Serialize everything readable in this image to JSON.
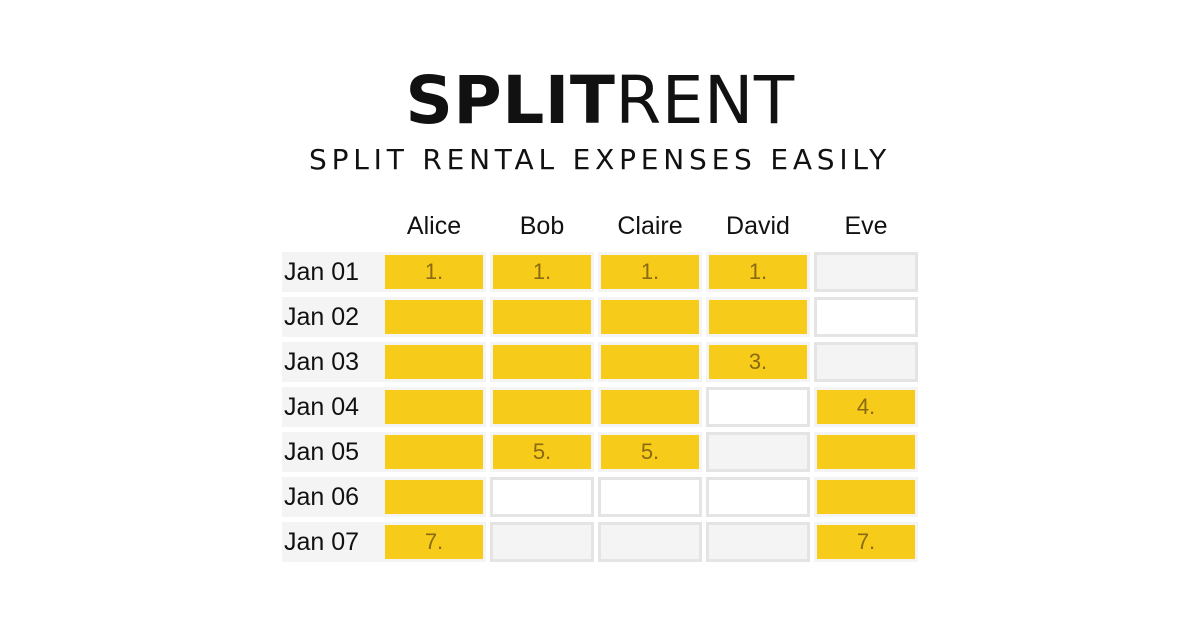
{
  "header": {
    "title_bold": "SPLIT",
    "title_light": "RENT",
    "subtitle": "SPLIT RENTAL EXPENSES EASILY"
  },
  "schedule": {
    "columns": [
      "Alice",
      "Bob",
      "Claire",
      "David",
      "Eve"
    ],
    "rows": [
      {
        "label": "Jan 01",
        "cells": [
          {
            "state": "yellow",
            "text": "1."
          },
          {
            "state": "yellow",
            "text": "1."
          },
          {
            "state": "yellow",
            "text": "1."
          },
          {
            "state": "yellow",
            "text": "1."
          },
          {
            "state": "gray",
            "text": ""
          }
        ]
      },
      {
        "label": "Jan 02",
        "cells": [
          {
            "state": "yellow",
            "text": ""
          },
          {
            "state": "yellow",
            "text": ""
          },
          {
            "state": "yellow",
            "text": ""
          },
          {
            "state": "yellow",
            "text": ""
          },
          {
            "state": "white",
            "text": ""
          }
        ]
      },
      {
        "label": "Jan 03",
        "cells": [
          {
            "state": "yellow",
            "text": ""
          },
          {
            "state": "yellow",
            "text": ""
          },
          {
            "state": "yellow",
            "text": ""
          },
          {
            "state": "yellow",
            "text": "3."
          },
          {
            "state": "gray",
            "text": ""
          }
        ]
      },
      {
        "label": "Jan 04",
        "cells": [
          {
            "state": "yellow",
            "text": ""
          },
          {
            "state": "yellow",
            "text": ""
          },
          {
            "state": "yellow",
            "text": ""
          },
          {
            "state": "white",
            "text": ""
          },
          {
            "state": "yellow",
            "text": "4."
          }
        ]
      },
      {
        "label": "Jan 05",
        "cells": [
          {
            "state": "yellow",
            "text": ""
          },
          {
            "state": "yellow",
            "text": "5."
          },
          {
            "state": "yellow",
            "text": "5."
          },
          {
            "state": "gray",
            "text": ""
          },
          {
            "state": "yellow",
            "text": ""
          }
        ]
      },
      {
        "label": "Jan 06",
        "cells": [
          {
            "state": "yellow",
            "text": ""
          },
          {
            "state": "white",
            "text": ""
          },
          {
            "state": "white",
            "text": ""
          },
          {
            "state": "white",
            "text": ""
          },
          {
            "state": "yellow",
            "text": ""
          }
        ]
      },
      {
        "label": "Jan 07",
        "cells": [
          {
            "state": "yellow",
            "text": "7."
          },
          {
            "state": "gray",
            "text": ""
          },
          {
            "state": "gray",
            "text": ""
          },
          {
            "state": "gray",
            "text": ""
          },
          {
            "state": "yellow",
            "text": "7."
          }
        ]
      }
    ]
  },
  "colors": {
    "accent_yellow": "#f7cb19",
    "empty_gray": "#f4f4f4",
    "cell_border": "#e4e4e4",
    "text": "#111111"
  }
}
